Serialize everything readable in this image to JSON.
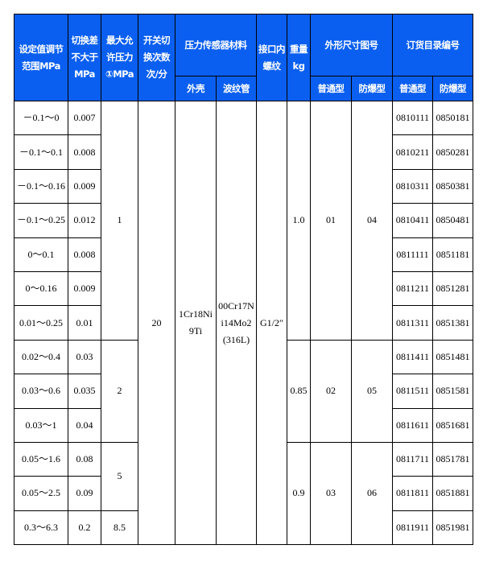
{
  "header": {
    "range": "设定值调节范围MPa",
    "diff": "切换差不大于MPa",
    "max_pressure": "最大允许压力①MPa",
    "switch_freq": "开关切换次数次/分",
    "sensor_material": "压力传感器材料",
    "housing": "外壳",
    "bellows": "波纹管",
    "thread": "接口内螺纹",
    "weight": "重量kg",
    "dimension_drawing": "外形尺寸图号",
    "order_number": "订货目录编号",
    "normal": "普通型",
    "explosion_proof": "防爆型"
  },
  "header_color": "#0a5ff0",
  "rows": [
    {
      "range": "－0.1～0",
      "diff": "0.007",
      "normal": "0810111",
      "explosion": "0850181"
    },
    {
      "range": "－0.1～0.1",
      "diff": "0.008",
      "normal": "0810211",
      "explosion": "0850281"
    },
    {
      "range": "－0.1～0.16",
      "diff": "0.009",
      "normal": "0810311",
      "explosion": "0850381"
    },
    {
      "range": "－0.1～0.25",
      "diff": "0.012",
      "normal": "0810411",
      "explosion": "0850481"
    },
    {
      "range": "0～0.1",
      "diff": "0.008",
      "normal": "0811111",
      "explosion": "0851181"
    },
    {
      "range": "0～0.16",
      "diff": "0.009",
      "normal": "0811211",
      "explosion": "0851281"
    },
    {
      "range": "0.01～0.25",
      "diff": "0.01",
      "normal": "0811311",
      "explosion": "0851381"
    },
    {
      "range": "0.02～0.4",
      "diff": "0.03",
      "normal": "0811411",
      "explosion": "0851481"
    },
    {
      "range": "0.03～0.6",
      "diff": "0.035",
      "normal": "0811511",
      "explosion": "0851581"
    },
    {
      "range": "0.03～1",
      "diff": "0.04",
      "normal": "0811611",
      "explosion": "0851681"
    },
    {
      "range": "0.05～1.6",
      "diff": "0.08",
      "normal": "0811711",
      "explosion": "0851781"
    },
    {
      "range": "0.05～2.5",
      "diff": "0.09",
      "normal": "0811811",
      "explosion": "0851881"
    },
    {
      "range": "0.3～6.3",
      "diff": "0.2",
      "normal": "0811911",
      "explosion": "0851981"
    }
  ],
  "max_pressure_groups": [
    {
      "value": "1",
      "rows": 7
    },
    {
      "value": "2",
      "rows": 3
    },
    {
      "value": "5",
      "rows": 2
    },
    {
      "value": "8.5",
      "rows": 1
    }
  ],
  "weight_groups": [
    {
      "weight": "1.0",
      "normal_drawing": "01",
      "explosion_drawing": "04",
      "rows": 7
    },
    {
      "weight": "0.85",
      "normal_drawing": "02",
      "explosion_drawing": "05",
      "rows": 3
    },
    {
      "weight": "0.9",
      "normal_drawing": "03",
      "explosion_drawing": "06",
      "rows": 3
    }
  ],
  "common": {
    "switch_freq": "20",
    "housing": "1Cr18Ni9Ti",
    "bellows": "00Cr17Ni14Mo2(316L)",
    "thread": "G1/2″"
  }
}
